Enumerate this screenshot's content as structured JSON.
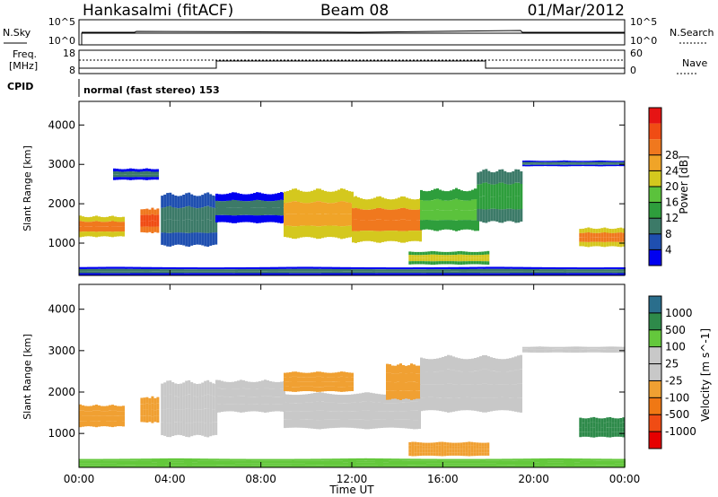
{
  "header": {
    "station": "Hankasalmi (fitACF)",
    "beam": "Beam 08",
    "date": "01/Mar/2012"
  },
  "status_strips": {
    "nsky_label": "N.Sky",
    "nsky_ticks": [
      "10^5",
      "10^0"
    ],
    "nsearch_label": "N.Search",
    "nsearch_ticks": [
      "10^5",
      "10^0"
    ],
    "freq_label_line1": "Freq.",
    "freq_label_line2": "[MHz]",
    "freq_ticks": [
      "18",
      "8"
    ],
    "nave_label": "Nave",
    "nave_ticks": [
      "60",
      "0"
    ],
    "cpid_label": "CPID",
    "cpid_text": "normal (fast stereo) 153"
  },
  "colors": {
    "power_scale": [
      "#0000f0",
      "#1f4fb0",
      "#3c7a68",
      "#2e9e3c",
      "#5bc23c",
      "#d4c81e",
      "#f0a428",
      "#f0781e",
      "#f04c14",
      "#e61414"
    ],
    "velocity_scale": [
      "#e60000",
      "#f04c14",
      "#f07814",
      "#f0a032",
      "#c8c8c8",
      "#c8c8c8",
      "#64c83c",
      "#2e8a4a",
      "#2a6e8c",
      "#2850b4"
    ],
    "ground_scatter": "#c8c8c8"
  },
  "chart_data": [
    {
      "type": "heatmap",
      "name": "power-panel",
      "ylabel": "Slant Range [km]",
      "colorbar_label": "Power [dB]",
      "colorbar_ticks": [
        "4",
        "8",
        "12",
        "16",
        "20",
        "24",
        "28"
      ],
      "colorbar_range": [
        0,
        32
      ],
      "xlim_hours": [
        0,
        24
      ],
      "ylim_km": [
        180,
        4600
      ],
      "yticks": [
        "1000",
        "2000",
        "3000",
        "4000"
      ],
      "echo_regions": [
        {
          "t0": 0.0,
          "t1": 2.0,
          "r0": 1150,
          "r1": 1700,
          "power": 22
        },
        {
          "t0": 2.7,
          "t1": 3.5,
          "r0": 1250,
          "r1": 1900,
          "power": 26
        },
        {
          "t0": 3.6,
          "t1": 6.0,
          "r0": 900,
          "r1": 2300,
          "power": 8
        },
        {
          "t0": 1.5,
          "t1": 3.5,
          "r0": 2600,
          "r1": 2900,
          "power": 6
        },
        {
          "t0": 6.0,
          "t1": 9.0,
          "r0": 1500,
          "r1": 2300,
          "power": 6
        },
        {
          "t0": 9.0,
          "t1": 12.0,
          "r0": 1100,
          "r1": 2400,
          "power": 20
        },
        {
          "t0": 12.0,
          "t1": 15.0,
          "r0": 1000,
          "r1": 2200,
          "power": 22
        },
        {
          "t0": 15.0,
          "t1": 17.5,
          "r0": 1300,
          "r1": 2400,
          "power": 14
        },
        {
          "t0": 17.5,
          "t1": 19.5,
          "r0": 1500,
          "r1": 2900,
          "power": 10
        },
        {
          "t0": 19.5,
          "t1": 24.0,
          "r0": 2950,
          "r1": 3100,
          "power": 5
        },
        {
          "t0": 14.5,
          "t1": 18.0,
          "r0": 450,
          "r1": 800,
          "power": 16
        },
        {
          "t0": 22.0,
          "t1": 24.0,
          "r0": 900,
          "r1": 1400,
          "power": 22
        },
        {
          "t0": 0.0,
          "t1": 24.0,
          "r0": 180,
          "r1": 400,
          "power": 6
        }
      ]
    },
    {
      "type": "heatmap",
      "name": "velocity-panel",
      "xlabel": "Time UT",
      "ylabel": "Slant Range [km]",
      "colorbar_label": "Velocity [m s^-1]",
      "colorbar_ticks": [
        "-1000",
        "-500",
        "-100",
        "-25",
        "25",
        "100",
        "500",
        "1000"
      ],
      "xlim_hours": [
        0,
        24
      ],
      "xticks": [
        "00:00",
        "04:00",
        "08:00",
        "12:00",
        "16:00",
        "20:00",
        "00:00"
      ],
      "ylim_km": [
        180,
        4600
      ],
      "yticks": [
        "1000",
        "2000",
        "3000",
        "4000"
      ],
      "echo_regions": [
        {
          "t0": 0.0,
          "t1": 2.0,
          "r0": 1150,
          "r1": 1700,
          "velocity": -300
        },
        {
          "t0": 2.7,
          "t1": 3.5,
          "r0": 1250,
          "r1": 1900,
          "velocity": -200
        },
        {
          "t0": 3.6,
          "t1": 6.0,
          "r0": 900,
          "r1": 2300,
          "velocity": 0
        },
        {
          "t0": 6.0,
          "t1": 9.0,
          "r0": 1500,
          "r1": 2300,
          "velocity": 0
        },
        {
          "t0": 9.0,
          "t1": 15.0,
          "r0": 1100,
          "r1": 2000,
          "velocity": 0
        },
        {
          "t0": 9.0,
          "t1": 12.0,
          "r0": 2000,
          "r1": 2500,
          "velocity": -400
        },
        {
          "t0": 13.5,
          "t1": 15.0,
          "r0": 1800,
          "r1": 2700,
          "velocity": -300
        },
        {
          "t0": 15.0,
          "t1": 19.5,
          "r0": 1500,
          "r1": 2900,
          "velocity": 0
        },
        {
          "t0": 19.5,
          "t1": 24.0,
          "r0": 2950,
          "r1": 3100,
          "velocity": 0
        },
        {
          "t0": 14.5,
          "t1": 18.0,
          "r0": 450,
          "r1": 800,
          "velocity": -150
        },
        {
          "t0": 22.0,
          "t1": 24.0,
          "r0": 900,
          "r1": 1400,
          "velocity": 300
        },
        {
          "t0": 0.0,
          "t1": 24.0,
          "r0": 180,
          "r1": 400,
          "velocity": 60
        }
      ]
    }
  ]
}
